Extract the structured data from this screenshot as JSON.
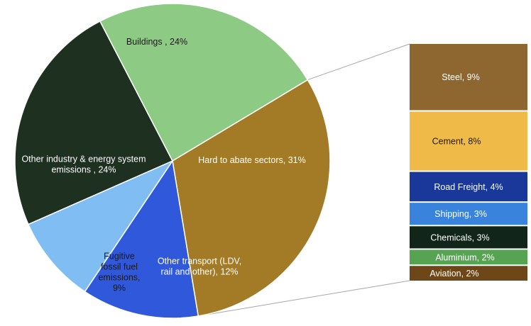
{
  "chart_data": {
    "type": "pie",
    "title": "",
    "pie": {
      "slices": [
        {
          "label_lines": [
            "Hard to abate sectors, 31%"
          ],
          "value": 31,
          "color": "#A37A25",
          "text_color": "#ffffff"
        },
        {
          "label_lines": [
            "Other transport (LDV,",
            "rail and other), 12%"
          ],
          "value": 12,
          "color": "#2F58DA",
          "text_color": "#ffffff"
        },
        {
          "label_lines": [
            "Fugitive",
            "fossil fuel",
            "emissions,",
            "9%"
          ],
          "value": 9,
          "color": "#7FBDF3",
          "text_color": "#1a1a1a"
        },
        {
          "label_lines": [
            "Other industry & energy system",
            "emissions , 24%"
          ],
          "value": 24,
          "color": "#1E3020",
          "text_color": "#ffffff"
        },
        {
          "label_lines": [
            "Buildings , 24%"
          ],
          "value": 24,
          "color": "#8DCA84",
          "text_color": "#1a1a1a"
        }
      ]
    },
    "breakdown": {
      "parent": "Hard to abate sectors, 31%",
      "segments": [
        {
          "label": "Steel, 9%",
          "value": 9,
          "color": "#8D6630",
          "text_color": "#ffffff"
        },
        {
          "label": "Cement, 8%",
          "value": 8,
          "color": "#EFBA48",
          "text_color": "#1a1a1a"
        },
        {
          "label": "Road Freight, 4%",
          "value": 4,
          "color": "#19389A",
          "text_color": "#ffffff"
        },
        {
          "label": "Shipping, 3%",
          "value": 3,
          "color": "#3A83DD",
          "text_color": "#ffffff"
        },
        {
          "label": "Chemicals, 3%",
          "value": 3,
          "color": "#11251A",
          "text_color": "#ffffff"
        },
        {
          "label": "Aluminium, 2%",
          "value": 2,
          "color": "#56A452",
          "text_color": "#ffffff"
        },
        {
          "label": "Aviation, 2%",
          "value": 2,
          "color": "#6E4718",
          "text_color": "#ffffff"
        }
      ]
    },
    "connector_color": "#A6A6A6"
  }
}
